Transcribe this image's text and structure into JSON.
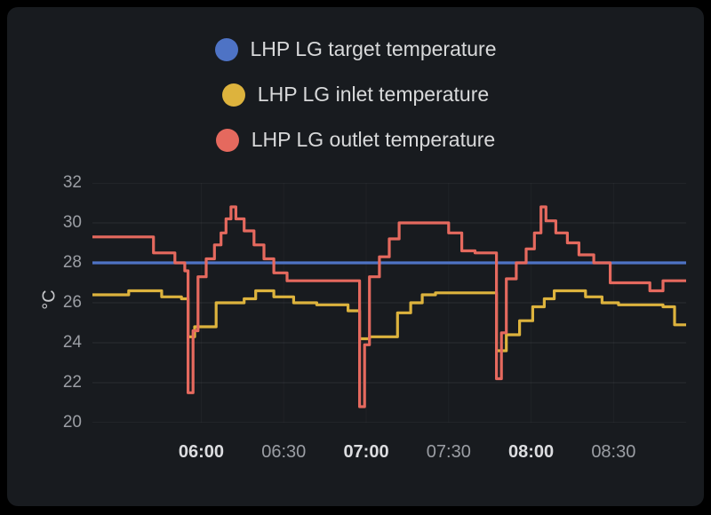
{
  "legend": {
    "items": [
      {
        "label": "LHP LG target temperature",
        "color": "#4e73c5"
      },
      {
        "label": "LHP LG inlet temperature",
        "color": "#ddb33d"
      },
      {
        "label": "LHP LG outlet temperature",
        "color": "#e5695e"
      }
    ]
  },
  "chart_data": {
    "type": "line",
    "interpolation": "step-after",
    "title": "",
    "xlabel": "",
    "ylabel": "°C",
    "ylim": [
      20,
      32
    ],
    "y_ticks": [
      20,
      22,
      24,
      26,
      28,
      30,
      32
    ],
    "xlim_hours": [
      5.34,
      8.94
    ],
    "x_ticks": [
      {
        "t": 6.0,
        "label": "06:00",
        "bold": true
      },
      {
        "t": 6.5,
        "label": "06:30",
        "bold": false
      },
      {
        "t": 7.0,
        "label": "07:00",
        "bold": true
      },
      {
        "t": 7.5,
        "label": "07:30",
        "bold": false
      },
      {
        "t": 8.0,
        "label": "08:00",
        "bold": true
      },
      {
        "t": 8.5,
        "label": "08:30",
        "bold": false
      }
    ],
    "grid": true,
    "legend_position": "top",
    "series": [
      {
        "name": "LHP LG target temperature",
        "color": "#4e73c5",
        "points": [
          [
            5.34,
            28.0
          ],
          [
            8.94,
            28.0
          ]
        ]
      },
      {
        "name": "LHP LG inlet temperature",
        "color": "#ddb33d",
        "points": [
          [
            5.34,
            26.4
          ],
          [
            5.56,
            26.6
          ],
          [
            5.76,
            26.3
          ],
          [
            5.88,
            26.2
          ],
          [
            5.92,
            24.3
          ],
          [
            5.96,
            24.8
          ],
          [
            6.09,
            26.0
          ],
          [
            6.26,
            26.2
          ],
          [
            6.33,
            26.6
          ],
          [
            6.44,
            26.3
          ],
          [
            6.56,
            26.0
          ],
          [
            6.7,
            25.9
          ],
          [
            6.89,
            25.6
          ],
          [
            6.96,
            24.2
          ],
          [
            7.02,
            24.3
          ],
          [
            7.19,
            25.5
          ],
          [
            7.27,
            26.0
          ],
          [
            7.34,
            26.4
          ],
          [
            7.42,
            26.5
          ],
          [
            7.79,
            23.6
          ],
          [
            7.85,
            24.4
          ],
          [
            7.93,
            25.1
          ],
          [
            8.01,
            25.8
          ],
          [
            8.08,
            26.2
          ],
          [
            8.14,
            26.6
          ],
          [
            8.33,
            26.3
          ],
          [
            8.43,
            26.0
          ],
          [
            8.53,
            25.9
          ],
          [
            8.8,
            25.8
          ],
          [
            8.87,
            24.9
          ]
        ]
      },
      {
        "name": "LHP LG outlet temperature",
        "color": "#e5695e",
        "points": [
          [
            5.34,
            29.3
          ],
          [
            5.71,
            28.5
          ],
          [
            5.84,
            28.0
          ],
          [
            5.9,
            27.6
          ],
          [
            5.92,
            21.5
          ],
          [
            5.95,
            24.6
          ],
          [
            5.98,
            27.3
          ],
          [
            6.03,
            28.2
          ],
          [
            6.08,
            28.9
          ],
          [
            6.12,
            29.5
          ],
          [
            6.15,
            30.2
          ],
          [
            6.18,
            30.8
          ],
          [
            6.21,
            30.2
          ],
          [
            6.26,
            29.6
          ],
          [
            6.32,
            28.9
          ],
          [
            6.38,
            28.2
          ],
          [
            6.44,
            27.5
          ],
          [
            6.52,
            27.1
          ],
          [
            6.96,
            20.8
          ],
          [
            6.99,
            23.9
          ],
          [
            7.02,
            27.3
          ],
          [
            7.08,
            28.3
          ],
          [
            7.14,
            29.2
          ],
          [
            7.2,
            30.0
          ],
          [
            7.5,
            29.5
          ],
          [
            7.58,
            28.6
          ],
          [
            7.66,
            28.5
          ],
          [
            7.79,
            22.2
          ],
          [
            7.82,
            24.5
          ],
          [
            7.85,
            27.2
          ],
          [
            7.91,
            28.0
          ],
          [
            7.97,
            28.7
          ],
          [
            8.02,
            29.5
          ],
          [
            8.06,
            30.8
          ],
          [
            8.09,
            30.1
          ],
          [
            8.15,
            29.5
          ],
          [
            8.22,
            29.0
          ],
          [
            8.29,
            28.4
          ],
          [
            8.38,
            28.0
          ],
          [
            8.48,
            27.0
          ],
          [
            8.72,
            26.6
          ],
          [
            8.8,
            27.1
          ]
        ]
      }
    ],
    "grid_color": "rgba(204,204,220,0.10)",
    "vgrid_color": "rgba(204,204,220,0.045)"
  }
}
